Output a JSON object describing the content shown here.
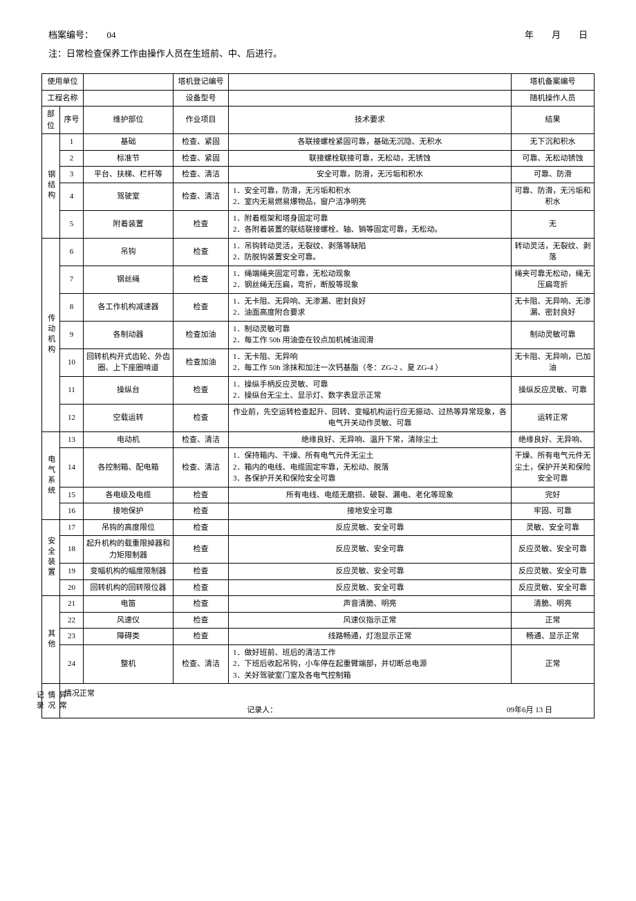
{
  "header": {
    "archive_label": "档案编号：",
    "archive_num": "04",
    "date_label": "年　　月　　日",
    "note": "注：日常检查保养工作由操作人员在生班前、中、后进行。"
  },
  "info": {
    "unit_label": "使用单位",
    "reg_label": "塔机登记编号",
    "file_label": "塔机备案编号",
    "project_label": "工程名称",
    "model_label": "设备型号",
    "operator_label": "随机操作人员"
  },
  "cols": {
    "section": "部位",
    "num": "序号",
    "part": "维护部位",
    "work": "作业项目",
    "req": "技术要求",
    "result": "结果"
  },
  "sections": [
    {
      "name": "钢结构",
      "rows": [
        {
          "n": "1",
          "part": "基础",
          "work": "检查、紧固",
          "req": "各联接螺栓紧固可靠，基础无沉隐、无积水",
          "res": "无下沉和积水"
        },
        {
          "n": "2",
          "part": "标准节",
          "work": "检查、紧固",
          "req": "联接螺栓联接可靠，无松动，无锈蚀",
          "res": "可靠、无松动锈蚀"
        },
        {
          "n": "3",
          "part": "平台、扶梯、栏杆等",
          "work": "检查、清洁",
          "req": "安全可靠，防滑，无污垢和积水",
          "res": "可靠、防滑"
        },
        {
          "n": "4",
          "part": "驾驶室",
          "work": "检查、清洁",
          "req": "1．安全可靠，防滑，无污垢和积水\n2．室内无易燃易爆物品，窗户洁净明亮",
          "res": "可靠、防滑，无污垢和积水"
        },
        {
          "n": "5",
          "part": "附着装置",
          "work": "检查",
          "req": "1．附着框架和塔身固定可靠\n2．各附着装置的联结联接螺栓、轴、销等固定可靠，无松动。",
          "res": "无"
        }
      ]
    },
    {
      "name": "传动机构",
      "rows": [
        {
          "n": "6",
          "part": "吊钩",
          "work": "检查",
          "req": "1．吊钩转动灵活，无裂纹、剥落等缺陷\n2．防脱钩装置安全可靠。",
          "res": "转动灵活，无裂纹、剥落"
        },
        {
          "n": "7",
          "part": "钢丝绳",
          "work": "检查",
          "req": "1．绳端绳夹固定可靠，无松动现象\n2．钢丝绳无压扁，弯折，断股等现象",
          "res": "绳夹可靠无松动，绳无压扁弯折"
        },
        {
          "n": "8",
          "part": "各工作机构减速器",
          "work": "检查",
          "req": "1．无卡阻、无异响、无渗漏、密封良好\n2．油面高度附合要求",
          "res": "无卡阻、无异响、无渗漏、密封良好"
        },
        {
          "n": "9",
          "part": "各制动器",
          "work": "检查加油",
          "req": "1．制动灵敏可靠\n2．每工作 50h 用油壶在铰点加机械油润滑",
          "res": "制动灵敏可靠"
        },
        {
          "n": "10",
          "part": "回转机构开式齿轮、外齿圈、上下座圈啃道",
          "work": "检查加油",
          "req": "1．无卡阻、无异响\n2．每工作 50h 涂抹和加注一次钙基脂（冬：ZG-2 、夏 ZG-4 ）",
          "res": "无卡阻、无异响，已加油"
        },
        {
          "n": "11",
          "part": "操纵台",
          "work": "检查",
          "req": "1．操纵手柄反应灵敏、可靠\n2．操纵台无尘土、显示灯、数字表显示正常",
          "res": "操纵反应灵敏、可靠"
        },
        {
          "n": "12",
          "part": "空载运转",
          "work": "检查",
          "req": "作业前，先空运转检查起升、回转、变幅机构运行应无振动、过热等异常现象，各电气开关动作灵敏、可靠",
          "res": "运转正常"
        }
      ]
    },
    {
      "name": "电气系统",
      "rows": [
        {
          "n": "13",
          "part": "电动机",
          "work": "检查、清洁",
          "req": "绝缘良好、无异响、温升下常，清除尘土",
          "res": "绝缘良好、无异响、"
        },
        {
          "n": "14",
          "part": "各控制箱、配电箱",
          "work": "检查、清洁",
          "req": "1．保持箱内、干燥、所有电气元件无尘土\n2．箱内的电线、电缆固定牢靠，无松动、脱落\n3．各保护开关和保险安全可靠",
          "res": "干燥、所有电气元件无尘土，保护开关和保险安全可靠"
        },
        {
          "n": "15",
          "part": "各电级及电缆",
          "work": "检查",
          "req": "所有电线、电缆无磨损、破裂、漏电、老化等现象",
          "res": "完好"
        },
        {
          "n": "16",
          "part": "接地保护",
          "work": "检查",
          "req": "接地安全可靠",
          "res": "牢固、可靠"
        }
      ]
    },
    {
      "name": "安全装置",
      "rows": [
        {
          "n": "17",
          "part": "吊钩的高度限位",
          "work": "检查",
          "req": "反应灵敏、安全可靠",
          "res": "灵敏、安全可靠"
        },
        {
          "n": "18",
          "part": "起升机构的载重限掉器和力矩限制器",
          "work": "检查",
          "req": "反应灵敏、安全可靠",
          "res": "反应灵敏、安全可靠"
        },
        {
          "n": "19",
          "part": "变幅机构的幅度限制器",
          "work": "检查",
          "req": "反应灵敏、安全可靠",
          "res": "反应灵敏、安全可靠"
        },
        {
          "n": "20",
          "part": "回转机构的回转限位器",
          "work": "检查",
          "req": "反应灵敏、安全可靠",
          "res": "反应灵敏、安全可靠"
        }
      ]
    },
    {
      "name": "其他",
      "rows": [
        {
          "n": "21",
          "part": "电笛",
          "work": "检查",
          "req": "声音清脆、明亮",
          "res": "清脆、明亮"
        },
        {
          "n": "22",
          "part": "风速仪",
          "work": "检查",
          "req": "风速仪指示正常",
          "res": "正常"
        },
        {
          "n": "23",
          "part": "障碍类",
          "work": "检查",
          "req": "线路畅通，灯泡显示正常",
          "res": "畅通、显示正常"
        },
        {
          "n": "24",
          "part": "整机",
          "work": "检查、清洁",
          "req": "1．做好班前、班后的清洁工作\n2．下班后收起吊钩，小车停在起重臂端部，并切断总电源\n3．关好驾驶室门室及各电气控制箱",
          "res": "正常"
        }
      ]
    }
  ],
  "footer": {
    "label": "异常情况记录",
    "status": "情况正常",
    "recorder_label": "记录人：",
    "date": "09年6月 13 日"
  }
}
